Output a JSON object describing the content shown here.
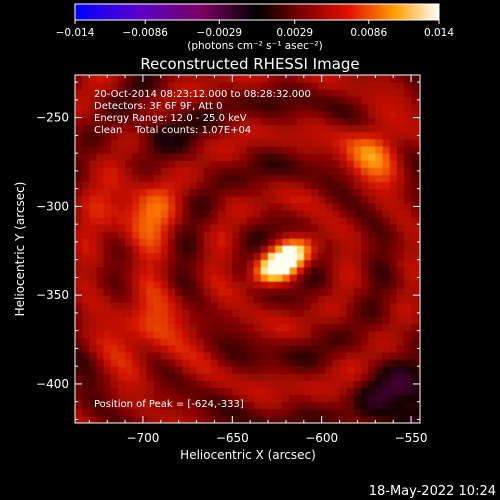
{
  "chart_data": {
    "type": "heatmap",
    "title": "Reconstructed RHESSI Image",
    "xlabel": "Heliocentric X (arcsec)",
    "ylabel": "Heliocentric Y (arcsec)",
    "xlim": [
      -738,
      -545
    ],
    "ylim": [
      -422,
      -226
    ],
    "x_ticks": [
      {
        "value": -700,
        "label": "−700"
      },
      {
        "value": -650,
        "label": "−650"
      },
      {
        "value": -600,
        "label": "−600"
      },
      {
        "value": -550,
        "label": "−550"
      }
    ],
    "y_ticks": [
      {
        "value": -250,
        "label": "−250"
      },
      {
        "value": -300,
        "label": "−300"
      },
      {
        "value": -350,
        "label": "−350"
      },
      {
        "value": -400,
        "label": "−400"
      }
    ],
    "colorbar": {
      "range": [
        -0.014,
        0.014
      ],
      "tick_values": [
        -0.014,
        -0.0086,
        -0.0029,
        0.0029,
        0.0086,
        0.014
      ],
      "tick_labels": [
        "−0.014",
        "−0.0086",
        "−0.0029",
        "0.0029",
        "0.0086",
        "0.014"
      ],
      "units_label": "(photons cm⁻² s⁻¹ asec⁻²)",
      "colormap": "blue-purple-red-orange-yellow-white"
    },
    "annotations": [
      "20-Oct-2014 08:23:12.000 to 08:28:32.000",
      "Detectors: 3F 6F 9F, Att 0",
      "Energy Range: 12.0 - 25.0 keV",
      "Clean    Total counts: 1.07E+04"
    ],
    "peak_label": "Position of Peak = [-624,-333]",
    "peak": {
      "x": -624,
      "y": -333
    },
    "grid": false
  },
  "footer": {
    "date": "18-May-2022 10:24"
  }
}
